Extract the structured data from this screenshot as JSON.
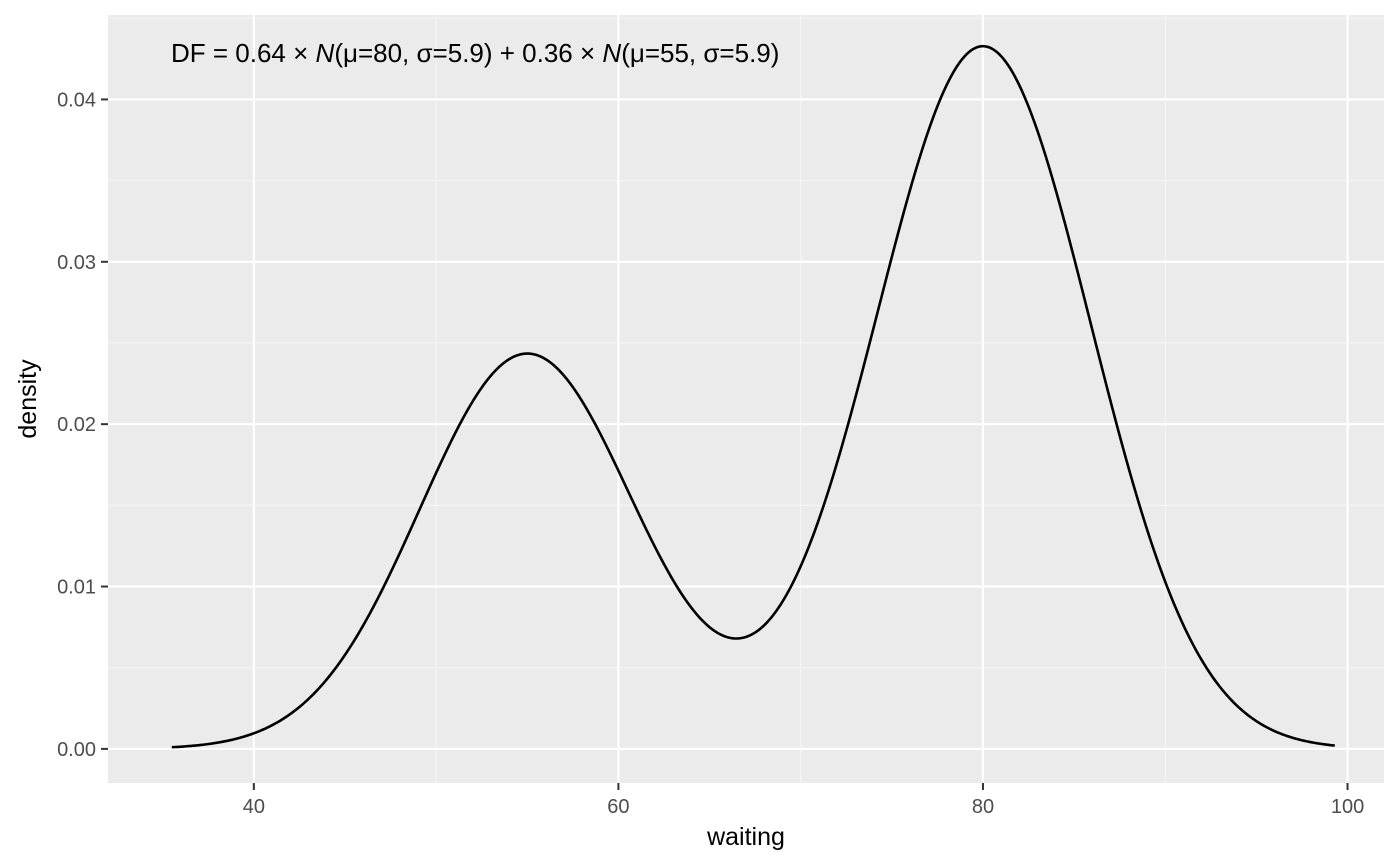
{
  "chart_data": {
    "type": "line",
    "title": "",
    "xlabel": "waiting",
    "ylabel": "density",
    "xlim": [
      32,
      102
    ],
    "ylim": [
      -0.0021,
      0.0452
    ],
    "x_ticks": [
      40,
      60,
      80,
      100
    ],
    "x_tick_labels": [
      "40",
      "60",
      "80",
      "100"
    ],
    "y_ticks": [
      0.0,
      0.01,
      0.02,
      0.03,
      0.04
    ],
    "y_tick_labels": [
      "0.00",
      "0.01",
      "0.02",
      "0.03",
      "0.04"
    ],
    "grid": true,
    "legend": "none",
    "x_range": [
      35.5,
      99.3
    ],
    "mixture": {
      "components": [
        {
          "weight": 0.64,
          "mu": 80,
          "sigma": 5.9
        },
        {
          "weight": 0.36,
          "mu": 55,
          "sigma": 5.9
        }
      ]
    },
    "annotation": {
      "parts": [
        {
          "text": "DF = 0.64 × ",
          "italic": false
        },
        {
          "text": "N",
          "italic": true
        },
        {
          "text": "(μ=80, σ=5.9) + 0.36 × ",
          "italic": false
        },
        {
          "text": "N",
          "italic": true
        },
        {
          "text": "(μ=55, σ=5.9)",
          "italic": false
        }
      ]
    },
    "colors": {
      "panel_background": "#ebebeb",
      "grid_major": "#ffffff",
      "grid_minor": "#f5f5f5",
      "line": "#000000",
      "tick_label": "#4d4d4d",
      "tick_mark": "#333333"
    }
  }
}
